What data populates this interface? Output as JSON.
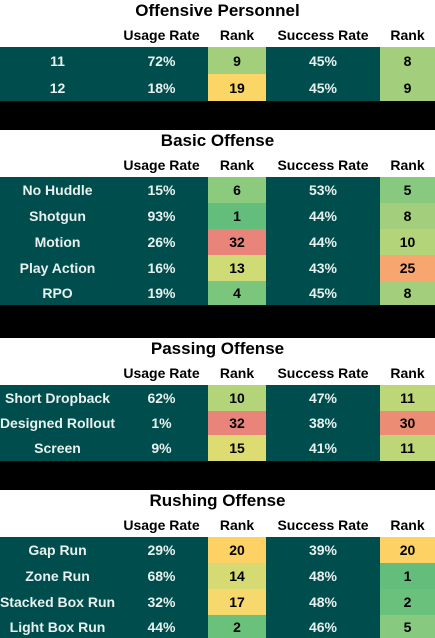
{
  "headers": {
    "usage": "Usage Rate",
    "rank": "Rank",
    "success": "Success Rate",
    "rank2": "Rank"
  },
  "sections": [
    {
      "title": "Offensive Personnel",
      "rows": [
        {
          "label": "11",
          "usage": "72%",
          "usage_rank": "9",
          "usage_color": "#a3cf7c",
          "success": "45%",
          "success_rank": "8",
          "success_color": "#a3cf7c"
        },
        {
          "label": "12",
          "usage": "18%",
          "usage_rank": "19",
          "usage_color": "#fbd565",
          "success": "45%",
          "success_rank": "9",
          "success_color": "#a3cf7c"
        }
      ]
    },
    {
      "title": "Basic Offense",
      "rows": [
        {
          "label": "No Huddle",
          "usage": "15%",
          "usage_rank": "6",
          "usage_color": "#8ccb7e",
          "success": "53%",
          "success_rank": "5",
          "success_color": "#86c97f"
        },
        {
          "label": "Shotgun",
          "usage": "93%",
          "usage_rank": "1",
          "usage_color": "#63be7b",
          "success": "44%",
          "success_rank": "8",
          "success_color": "#a3cf7c"
        },
        {
          "label": "Motion",
          "usage": "26%",
          "usage_rank": "32",
          "usage_color": "#e8847a",
          "success": "44%",
          "success_rank": "10",
          "success_color": "#b4d47a"
        },
        {
          "label": "Play Action",
          "usage": "16%",
          "usage_rank": "13",
          "usage_color": "#cfdb75",
          "success": "43%",
          "success_rank": "25",
          "success_color": "#f7a66f"
        },
        {
          "label": "RPO",
          "usage": "19%",
          "usage_rank": "4",
          "usage_color": "#7bc67d",
          "success": "45%",
          "success_rank": "8",
          "success_color": "#a3cf7c"
        }
      ]
    },
    {
      "title": "Passing Offense",
      "rows": [
        {
          "label": "Short Dropback",
          "usage": "62%",
          "usage_rank": "10",
          "usage_color": "#b4d47a",
          "success": "47%",
          "success_rank": "11",
          "success_color": "#bdd678"
        },
        {
          "label": "Designed Rollout",
          "usage": "1%",
          "usage_rank": "32",
          "usage_color": "#e8847a",
          "success": "38%",
          "success_rank": "30",
          "success_color": "#ec8c74"
        },
        {
          "label": "Screen",
          "usage": "9%",
          "usage_rank": "15",
          "usage_color": "#dcdc72",
          "success": "41%",
          "success_rank": "11",
          "success_color": "#bdd678"
        }
      ]
    },
    {
      "title": "Rushing Offense",
      "rows": [
        {
          "label": "Gap Run",
          "usage": "29%",
          "usage_rank": "20",
          "usage_color": "#fdd164",
          "success": "39%",
          "success_rank": "20",
          "success_color": "#fdd164"
        },
        {
          "label": "Zone Run",
          "usage": "68%",
          "usage_rank": "14",
          "usage_color": "#d6da73",
          "success": "48%",
          "success_rank": "1",
          "success_color": "#63be7b"
        },
        {
          "label": "Stacked Box Run",
          "usage": "32%",
          "usage_rank": "17",
          "usage_color": "#f6d86d",
          "success": "48%",
          "success_rank": "2",
          "success_color": "#6ac17c"
        },
        {
          "label": "Light Box Run",
          "usage": "44%",
          "usage_rank": "2",
          "usage_color": "#6ac17c",
          "success": "46%",
          "success_rank": "5",
          "success_color": "#86c97f"
        }
      ]
    }
  ]
}
